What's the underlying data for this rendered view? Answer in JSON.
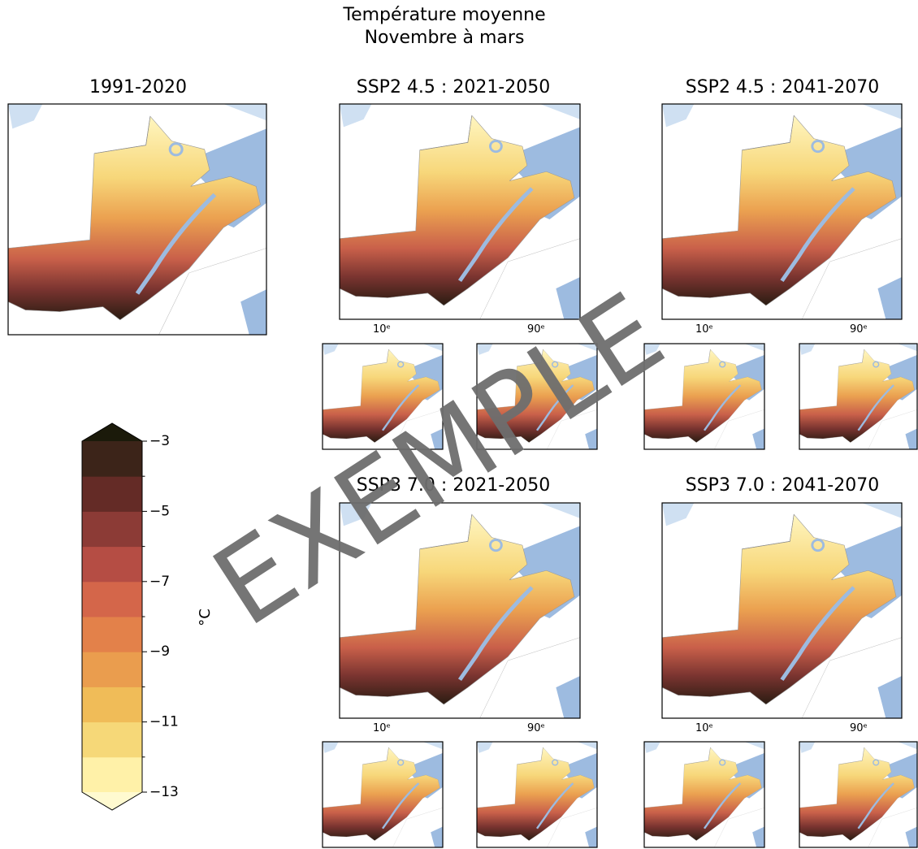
{
  "title": [
    "Température moyenne",
    "Novembre à mars"
  ],
  "panels": [
    {
      "title": "1991-2020"
    },
    {
      "title": "SSP2 4.5 : 2021-2050",
      "percentiles": [
        "10ᵉ",
        "90ᵉ"
      ]
    },
    {
      "title": "SSP2 4.5 : 2041-2070",
      "percentiles": [
        "10ᵉ",
        "90ᵉ"
      ]
    },
    {
      "title": "SSP3 7.0 : 2021-2050",
      "percentiles": [
        "10ᵉ",
        "90ᵉ"
      ]
    },
    {
      "title": "SSP3 7.0 : 2041-2070",
      "percentiles": [
        "10ᵉ",
        "90ᵉ"
      ]
    }
  ],
  "colorbar": {
    "label": "°C",
    "lim": [
      -13,
      -3
    ],
    "ticks": [
      {
        "value": -13,
        "label": "−13"
      },
      {
        "value": -11,
        "label": "−11"
      },
      {
        "value": -9,
        "label": "−9"
      },
      {
        "value": -7,
        "label": "−7"
      },
      {
        "value": -5,
        "label": "−5"
      },
      {
        "value": -3,
        "label": "−3"
      }
    ],
    "minor_ticks": [
      -12,
      -10,
      -8,
      -6,
      -4
    ],
    "colors": [
      "#fff1a8",
      "#f6d878",
      "#f0bc58",
      "#ea9d4e",
      "#e3814a",
      "#d4664a",
      "#b54d44",
      "#8c3b36",
      "#642b26",
      "#3c2419"
    ],
    "under_color": "#fffad0",
    "over_color": "#1b1a0a"
  },
  "watermark": "EXEMPLE"
}
